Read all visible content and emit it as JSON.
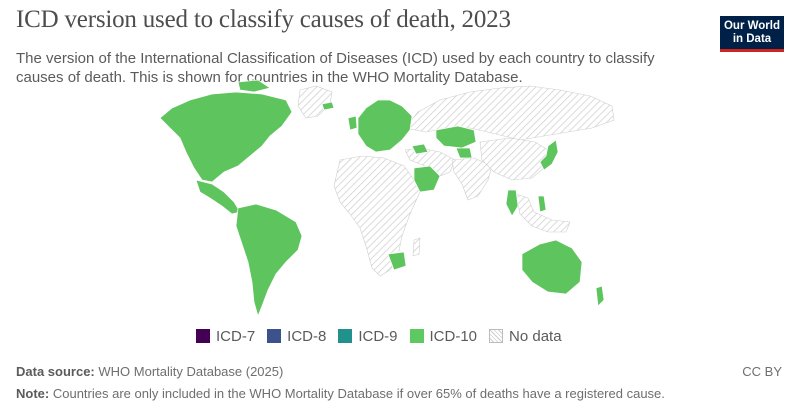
{
  "header": {
    "title": "ICD version used to classify causes of death, 2023",
    "subtitle": "The version of the International Classification of Diseases (ICD) used by each country to classify causes of death. This is shown for countries in the WHO Mortality Database."
  },
  "logo": {
    "line1": "Our World",
    "line2": "in Data",
    "bg_color": "#002147",
    "accent_color": "#ce261e"
  },
  "map": {
    "colors": {
      "icd10": "#5ec45e",
      "nodata_stroke": "#c8c8c8"
    },
    "regions_icd10": [
      "North America",
      "Central America",
      "South America",
      "Europe",
      "Kazakhstan",
      "Saudi Arabia",
      "Thailand",
      "Japan",
      "South Africa",
      "Australia",
      "Philippines"
    ],
    "regions_nodata": [
      "Africa",
      "Russia",
      "China",
      "Middle East",
      "South Asia",
      "Greenland",
      "Southeast Asia"
    ]
  },
  "legend": {
    "items": [
      {
        "label": "ICD-7",
        "color": "#440154"
      },
      {
        "label": "ICD-8",
        "color": "#3b528b"
      },
      {
        "label": "ICD-9",
        "color": "#21918c"
      },
      {
        "label": "ICD-10",
        "color": "#5ec962"
      },
      {
        "label": "No data",
        "color": "pattern"
      }
    ]
  },
  "footer": {
    "source_label": "Data source:",
    "source_text": "WHO Mortality Database (2025)",
    "note_label": "Note:",
    "note_text": "Countries are only included in the WHO Mortality Database if over 65% of deaths have a registered cause.",
    "license": "CC BY"
  }
}
